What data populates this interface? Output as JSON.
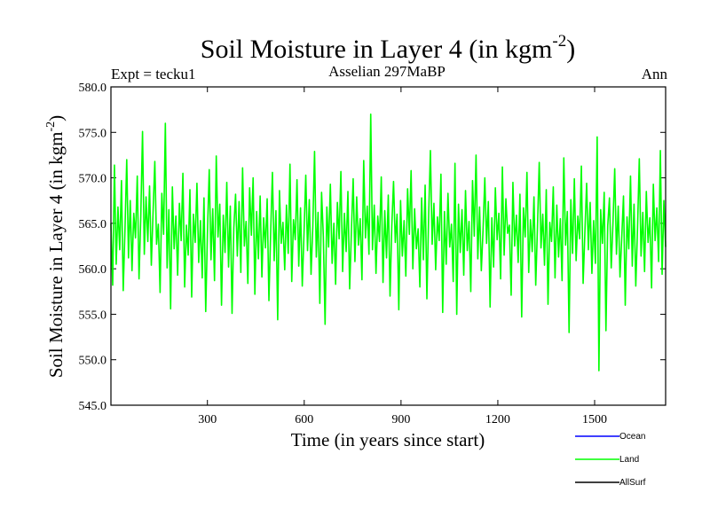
{
  "chart_data": {
    "type": "line",
    "title": "Soil Moisture in Layer 4 (in kgm",
    "title_sup": "-2",
    "title_end": ")",
    "subtitle_left": "Expt = tecku1",
    "subtitle_center": "Asselian 297MaBP",
    "subtitle_right": "Ann",
    "xlabel": "Time (in years since start)",
    "ylabel": "Soil Moisture in Layer 4 (in kgm",
    "ylabel_sup": "-2",
    "ylabel_end": ")",
    "xlim": [
      1,
      1720
    ],
    "ylim": [
      545.0,
      580.0
    ],
    "x_ticks": [
      300,
      600,
      900,
      1200,
      1500
    ],
    "x_tick_labels": [
      "300",
      "600",
      "900",
      "1200",
      "1500"
    ],
    "y_ticks": [
      545.0,
      550.0,
      555.0,
      560.0,
      565.0,
      570.0,
      575.0,
      580.0
    ],
    "y_tick_labels": [
      "545.0",
      "550.0",
      "555.0",
      "560.0",
      "565.0",
      "570.0",
      "575.0",
      "580.0"
    ],
    "series": [
      {
        "name": "Ocean",
        "color": "#0000ff",
        "values": []
      },
      {
        "name": "Land",
        "color": "#00ff00",
        "x_start": 1,
        "x_end": 1720,
        "values": [
          565.0,
          558.2,
          571.4,
          560.5,
          566.8,
          562.1,
          569.7,
          557.6,
          564.3,
          572.0,
          561.2,
          567.5,
          559.8,
          566.1,
          563.4,
          570.2,
          558.9,
          565.7,
          575.1,
          561.6,
          567.9,
          563.0,
          569.1,
          560.4,
          566.2,
          571.8,
          562.7,
          564.9,
          557.4,
          568.3,
          563.8,
          576.0,
          560.1,
          566.5,
          555.6,
          569.0,
          562.2,
          565.8,
          559.3,
          567.2,
          563.1,
          570.5,
          558.0,
          564.8,
          561.5,
          568.7,
          556.9,
          566.0,
          562.9,
          569.4,
          560.7,
          565.3,
          559.0,
          567.8,
          555.3,
          564.1,
          570.9,
          561.0,
          566.6,
          558.7,
          572.4,
          563.5,
          567.1,
          556.0,
          565.9,
          561.8,
          569.5,
          560.2,
          566.9,
          555.1,
          564.5,
          568.2,
          561.4,
          567.4,
          559.6,
          571.1,
          562.5,
          565.2,
          558.4,
          568.9,
          563.7,
          570.0,
          557.2,
          566.3,
          561.1,
          568.0,
          559.1,
          565.6,
          562.3,
          567.7,
          556.5,
          564.0,
          570.6,
          560.9,
          566.4,
          554.4,
          568.6,
          562.8,
          565.1,
          559.9,
          567.0,
          561.7,
          571.5,
          558.6,
          565.4,
          563.2,
          569.8,
          560.3,
          566.7,
          558.1,
          563.9,
          570.3,
          562.0,
          567.6,
          559.4,
          564.6,
          572.9,
          561.3,
          566.2,
          556.2,
          568.4,
          563.6,
          553.9,
          566.8,
          562.4,
          569.3,
          560.6,
          565.0,
          558.3,
          567.3,
          563.3,
          570.7,
          559.7,
          566.1,
          561.9,
          568.5,
          557.8,
          564.2,
          569.9,
          560.8,
          567.9,
          562.6,
          565.5,
          558.8,
          571.9,
          563.4,
          566.9,
          561.6,
          577.0,
          562.1,
          567.0,
          559.5,
          565.8,
          563.0,
          570.1,
          558.5,
          566.4,
          561.2,
          568.1,
          557.0,
          564.7,
          569.6,
          562.9,
          566.0,
          555.5,
          567.5,
          561.4,
          565.3,
          559.2,
          568.8,
          563.8,
          570.8,
          560.0,
          566.6,
          562.2,
          564.4,
          558.0,
          567.8,
          561.0,
          569.2,
          556.7,
          565.9,
          573.0,
          562.7,
          567.2,
          559.9,
          565.7,
          563.1,
          570.4,
          555.2,
          566.3,
          560.5,
          568.3,
          562.4,
          564.9,
          558.6,
          571.6,
          555.0,
          567.1,
          561.8,
          566.5,
          559.3,
          568.6,
          562.0,
          565.2,
          557.5,
          569.7,
          563.6,
          572.5,
          561.1,
          566.8,
          559.8,
          564.3,
          570.0,
          562.8,
          567.4,
          555.8,
          565.6,
          560.2,
          568.9,
          563.2,
          566.1,
          558.9,
          571.2,
          561.5,
          567.7,
          563.9,
          564.8,
          557.1,
          569.5,
          562.5,
          565.9,
          560.7,
          568.2,
          554.7,
          566.7,
          563.5,
          570.6,
          559.6,
          565.4,
          561.9,
          567.9,
          558.2,
          564.6,
          571.7,
          562.3,
          566.0,
          560.4,
          568.7,
          556.1,
          565.1,
          563.0,
          569.0,
          559.0,
          567.0,
          561.3,
          565.5,
          558.7,
          572.2,
          562.6,
          566.3,
          553.0,
          567.6,
          561.7,
          569.9,
          560.9,
          565.8,
          563.3,
          571.3,
          558.4,
          564.0,
          569.4,
          562.1,
          567.3,
          559.5,
          565.3,
          560.6,
          574.5,
          548.8,
          566.5,
          562.8,
          568.4,
          553.2,
          564.7,
          567.8,
          560.1,
          565.0,
          571.0,
          561.6,
          566.9,
          559.1,
          563.4,
          568.0,
          556.0,
          565.7,
          562.2,
          570.2,
          560.3,
          567.1,
          558.1,
          564.5,
          572.1,
          561.4,
          566.2,
          559.7,
          568.5,
          562.9,
          565.6,
          557.9,
          569.3,
          563.1,
          566.7,
          560.8,
          573.0,
          559.4,
          567.5,
          562.4
        ]
      },
      {
        "name": "AllSurf",
        "color": "#000000",
        "values": []
      }
    ],
    "legend_position": "bottom-right"
  }
}
